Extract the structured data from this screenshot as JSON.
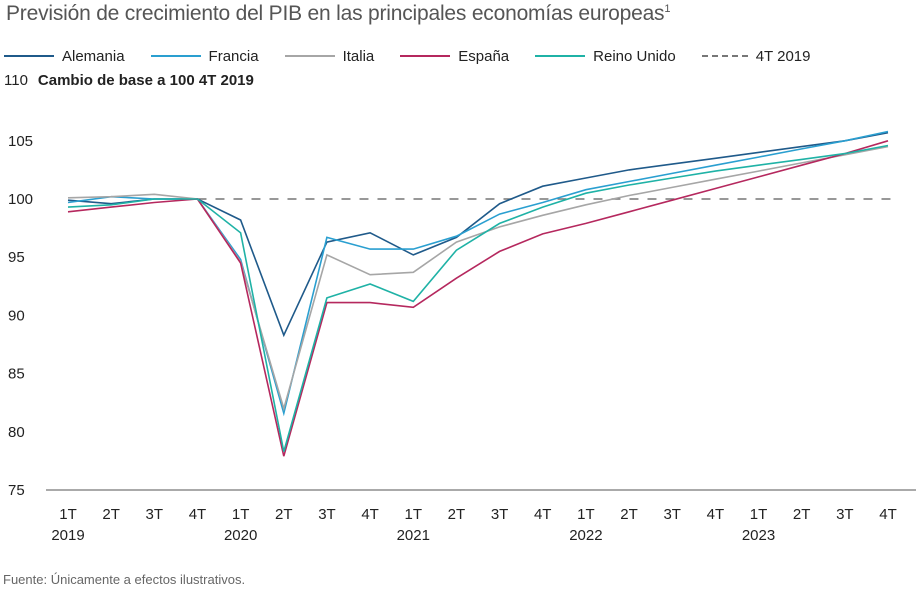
{
  "title": "Previsión de crecimiento del PIB en las principales economías europeas",
  "title_footnote": "1",
  "subtitle": "Cambio de base a 100 4T 2019",
  "source": "Fuente: Únicamente a efectos ilustrativos.",
  "legend": [
    {
      "name": "Alemania",
      "color": "#1f5a8a",
      "style": "solid"
    },
    {
      "name": "Francia",
      "color": "#2a9fd0",
      "style": "solid"
    },
    {
      "name": "Italia",
      "color": "#a6a6a6",
      "style": "solid"
    },
    {
      "name": "España",
      "color": "#b5285e",
      "style": "solid"
    },
    {
      "name": "Reino Unido",
      "color": "#1fb2a6",
      "style": "solid"
    },
    {
      "name": "4T 2019",
      "color": "#777777",
      "style": "dashed"
    }
  ],
  "chart_data": {
    "type": "line",
    "title": "Previsión de crecimiento del PIB en las principales economías europeas",
    "subtitle": "Cambio de base a 100 4T 2019",
    "xlabel": "",
    "ylabel": "",
    "ylim": [
      75,
      110
    ],
    "yticks": [
      75,
      80,
      85,
      90,
      95,
      100,
      105,
      110
    ],
    "grid": false,
    "legend_position": "top",
    "categories": [
      "1T",
      "2T",
      "3T",
      "4T",
      "1T",
      "2T",
      "3T",
      "4T",
      "1T",
      "2T",
      "3T",
      "4T",
      "1T",
      "2T",
      "3T",
      "4T",
      "1T",
      "2T",
      "3T",
      "4T"
    ],
    "year_labels": [
      {
        "index": 0,
        "label": "2019"
      },
      {
        "index": 4,
        "label": "2020"
      },
      {
        "index": 8,
        "label": "2021"
      },
      {
        "index": 12,
        "label": "2022"
      },
      {
        "index": 16,
        "label": "2023"
      }
    ],
    "series": [
      {
        "name": "Alemania",
        "color": "#1f5a8a",
        "values": [
          99.9,
          99.6,
          100.0,
          100.0,
          98.2,
          88.3,
          96.3,
          97.1,
          95.2,
          96.7,
          99.6,
          101.1,
          101.8,
          102.5,
          103.0,
          103.5,
          104.0,
          104.5,
          105.0,
          105.7
        ]
      },
      {
        "name": "Francia",
        "color": "#2a9fd0",
        "values": [
          99.7,
          100.2,
          100.0,
          100.0,
          94.8,
          81.6,
          96.7,
          95.7,
          95.7,
          96.8,
          98.7,
          99.7,
          100.8,
          101.5,
          102.2,
          102.9,
          103.6,
          104.3,
          105.0,
          105.8
        ]
      },
      {
        "name": "Italia",
        "color": "#a6a6a6",
        "values": [
          100.1,
          100.2,
          100.4,
          100.0,
          94.6,
          82.0,
          95.2,
          93.5,
          93.7,
          96.3,
          97.6,
          98.6,
          99.5,
          100.3,
          101.0,
          101.7,
          102.4,
          103.1,
          103.8,
          104.5
        ]
      },
      {
        "name": "España",
        "color": "#b5285e",
        "values": [
          98.9,
          99.3,
          99.7,
          100.0,
          94.5,
          77.9,
          91.1,
          91.1,
          90.7,
          93.2,
          95.5,
          97.0,
          97.9,
          98.9,
          99.9,
          100.9,
          101.9,
          102.9,
          103.9,
          105.0
        ]
      },
      {
        "name": "Reino Unido",
        "color": "#1fb2a6",
        "values": [
          99.3,
          99.5,
          100.0,
          100.0,
          97.1,
          78.3,
          91.5,
          92.7,
          91.2,
          95.6,
          97.9,
          99.3,
          100.5,
          101.2,
          101.8,
          102.4,
          102.9,
          103.4,
          103.9,
          104.6
        ]
      }
    ],
    "reference_line": {
      "name": "4T 2019",
      "value": 100,
      "style": "dashed",
      "color": "#777777"
    }
  }
}
